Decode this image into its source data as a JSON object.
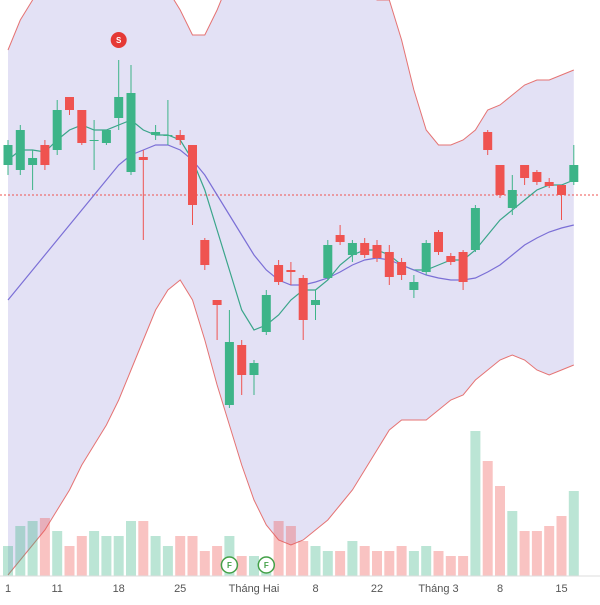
{
  "chart_data": {
    "type": "candlestick",
    "categories": [
      "1",
      null,
      null,
      null,
      "11",
      null,
      null,
      null,
      null,
      "18",
      null,
      null,
      null,
      null,
      "25",
      null,
      null,
      null,
      null,
      null,
      "Tháng Hai",
      null,
      null,
      null,
      null,
      "8",
      null,
      null,
      null,
      null,
      "22",
      null,
      null,
      null,
      null,
      "Tháng 3",
      null,
      null,
      null,
      null,
      "8",
      null,
      null,
      null,
      null,
      "15",
      null
    ],
    "ylim": [
      0,
      600
    ],
    "open": [
      435,
      430,
      435,
      455,
      450,
      503,
      490,
      460,
      457,
      482,
      428,
      443,
      465,
      465,
      465,
      455,
      360,
      300,
      195,
      255,
      225,
      268,
      335,
      330,
      322,
      295,
      322,
      365,
      345,
      357,
      355,
      348,
      338,
      310,
      328,
      368,
      344,
      348,
      350,
      468,
      435,
      392,
      435,
      428,
      418,
      415,
      418
    ],
    "high": [
      460,
      475,
      450,
      460,
      500,
      503,
      490,
      480,
      470,
      540,
      535,
      450,
      475,
      500,
      470,
      455,
      362,
      300,
      290,
      260,
      240,
      310,
      340,
      338,
      325,
      310,
      360,
      375,
      360,
      362,
      360,
      355,
      342,
      325,
      360,
      370,
      347,
      350,
      395,
      470,
      435,
      425,
      435,
      430,
      422,
      415,
      455
    ],
    "low": [
      425,
      425,
      410,
      430,
      445,
      485,
      455,
      430,
      455,
      470,
      425,
      360,
      460,
      455,
      455,
      375,
      330,
      260,
      192,
      205,
      205,
      265,
      315,
      315,
      260,
      280,
      320,
      355,
      338,
      342,
      338,
      315,
      320,
      302,
      325,
      345,
      335,
      310,
      348,
      445,
      402,
      385,
      415,
      415,
      412,
      380,
      415
    ],
    "close": [
      455,
      470,
      442,
      435,
      490,
      490,
      457,
      460,
      470,
      503,
      507,
      440,
      468,
      465,
      460,
      395,
      335,
      295,
      258,
      225,
      237,
      305,
      318,
      328,
      280,
      300,
      355,
      358,
      357,
      345,
      342,
      323,
      325,
      318,
      357,
      348,
      338,
      318,
      392,
      450,
      405,
      410,
      422,
      418,
      414,
      405,
      435
    ],
    "up_color": "#3db488",
    "down_color": "#ef5350",
    "volume": [
      30,
      50,
      55,
      58,
      45,
      30,
      40,
      45,
      40,
      40,
      55,
      55,
      40,
      30,
      40,
      40,
      25,
      30,
      40,
      20,
      20,
      15,
      55,
      50,
      35,
      30,
      25,
      25,
      35,
      30,
      25,
      25,
      30,
      25,
      30,
      25,
      20,
      20,
      145,
      115,
      90,
      65,
      45,
      45,
      50,
      60,
      85
    ],
    "volume_ylim": [
      0,
      600
    ],
    "band_upper": [
      550,
      580,
      600,
      620,
      630,
      650,
      660,
      660,
      660,
      655,
      650,
      640,
      630,
      610,
      590,
      565,
      565,
      590,
      620,
      640,
      650,
      660,
      660,
      660,
      655,
      650,
      640,
      630,
      620,
      610,
      600,
      600,
      560,
      510,
      470,
      455,
      455,
      460,
      470,
      490,
      495,
      505,
      515,
      520,
      520,
      525,
      530
    ],
    "band_lower": [
      25,
      40,
      55,
      70,
      90,
      110,
      135,
      155,
      175,
      200,
      230,
      260,
      290,
      310,
      320,
      300,
      260,
      215,
      175,
      135,
      100,
      75,
      60,
      55,
      60,
      70,
      80,
      95,
      110,
      130,
      150,
      170,
      180,
      180,
      180,
      190,
      200,
      205,
      220,
      230,
      240,
      245,
      240,
      230,
      225,
      230,
      235
    ],
    "band_color": "#e57373",
    "band_fill": "#d9d7f1",
    "series": [
      {
        "color": "#3aa58a",
        "values": [
          440,
          450,
          450,
          448,
          460,
          470,
          475,
          470,
          470,
          475,
          480,
          470,
          465,
          465,
          460,
          440,
          410,
          370,
          330,
          290,
          270,
          275,
          285,
          300,
          310,
          310,
          320,
          335,
          345,
          350,
          350,
          345,
          335,
          330,
          330,
          335,
          340,
          340,
          350,
          365,
          380,
          390,
          400,
          410,
          415,
          415,
          420
        ]
      },
      {
        "color": "#7b6fd6",
        "values": [
          300,
          315,
          330,
          345,
          360,
          375,
          390,
          405,
          420,
          435,
          445,
          450,
          455,
          455,
          450,
          440,
          425,
          405,
          385,
          365,
          345,
          330,
          320,
          315,
          315,
          318,
          322,
          328,
          335,
          340,
          342,
          340,
          335,
          330,
          325,
          322,
          320,
          320,
          322,
          328,
          335,
          345,
          355,
          362,
          368,
          372,
          375
        ]
      }
    ],
    "price_line": 405,
    "events": [
      {
        "text": "S",
        "at": 9,
        "color": "#e53935"
      },
      {
        "text": "F",
        "at": 18,
        "color": "#43a047"
      },
      {
        "text": "F",
        "at": 21,
        "color": "#43a047"
      }
    ]
  }
}
